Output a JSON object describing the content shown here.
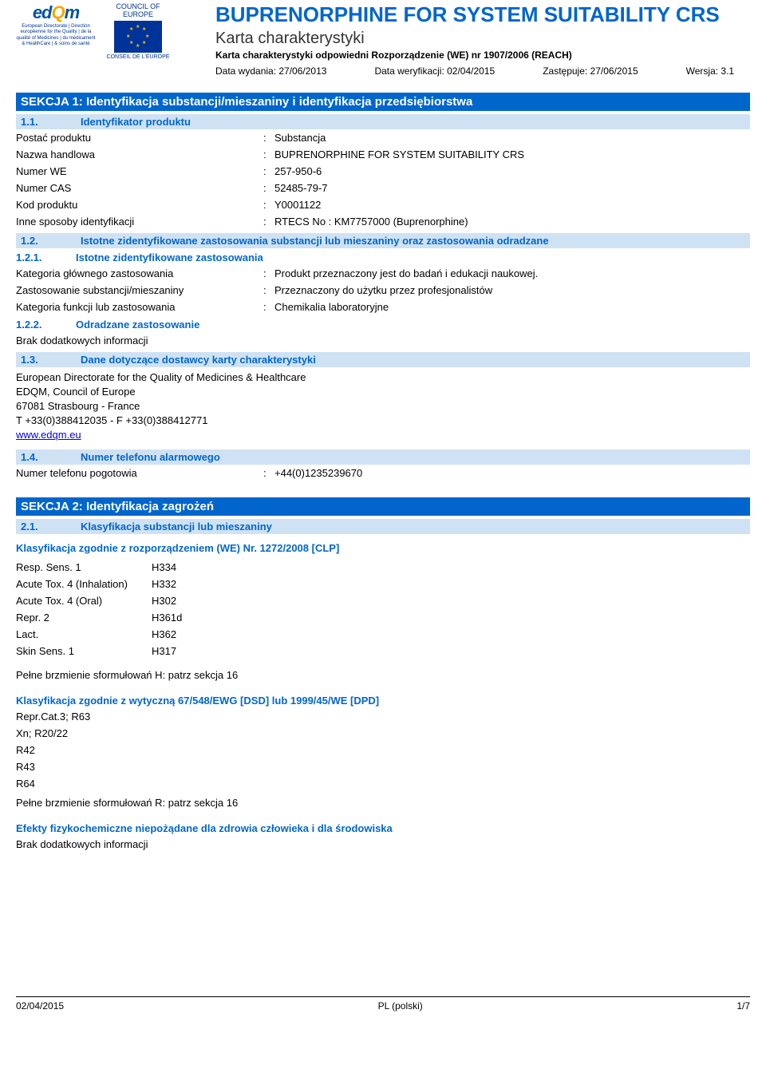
{
  "header": {
    "edqm_mark_e": "ed",
    "edqm_mark_q": "Q",
    "edqm_mark_m": "m",
    "edqm_sub": "European Directorate | Direction européenne\nfor the Quality | de la qualité\nof Medicines | du médicament\n& HealthCare | & soins de santé",
    "coe_top": "COUNCIL OF EUROPE",
    "coe_bottom": "CONSEIL DE L'EUROPE",
    "title": "BUPRENORPHINE FOR SYSTEM SUITABILITY CRS",
    "subtitle": "Karta charakterystyki",
    "regulation": "Karta charakterystyki odpowiedni Rozporządzenie (WE) nr 1907/2006 (REACH)",
    "issue_label": "Data wydania: 27/06/2013",
    "verify_label": "Data weryfikacji: 02/04/2015",
    "supersedes_label": "Zastępuje: 27/06/2015",
    "version_label": "Wersja: 3.1"
  },
  "s1": {
    "title": "SEKCJA 1: Identyfikacja substancji/mieszaniny i identyfikacja przedsiębiorstwa",
    "s11_num": "1.1.",
    "s11_title": "Identyfikator produktu",
    "form_k": "Postać produktu",
    "form_v": "Substancja",
    "trade_k": "Nazwa handlowa",
    "trade_v": "BUPRENORPHINE FOR SYSTEM SUITABILITY CRS",
    "ec_k": "Numer WE",
    "ec_v": "257-950-6",
    "cas_k": "Numer CAS",
    "cas_v": "52485-79-7",
    "code_k": "Kod produktu",
    "code_v": "Y0001122",
    "other_k": "Inne sposoby identyfikacji",
    "other_v": "RTECS No : KM7757000 (Buprenorphine)",
    "s12_num": "1.2.",
    "s12_title": "Istotne zidentyfikowane zastosowania substancji lub mieszaniny oraz zastosowania odradzane",
    "s121_num": "1.2.1.",
    "s121_title": "Istotne zidentyfikowane zastosowania",
    "maincat_k": "Kategoria głównego zastosowania",
    "maincat_v": "Produkt przeznaczony jest do badań i edukacji naukowej.",
    "use_k": "Zastosowanie substancji/mieszaniny",
    "use_v": "Przeznaczony do użytku przez profesjonalistów",
    "funccat_k": "Kategoria funkcji lub zastosowania",
    "funccat_v": "Chemikalia laboratoryjne",
    "s122_num": "1.2.2.",
    "s122_title": "Odradzane zastosowanie",
    "noinfo": "Brak dodatkowych informacji",
    "s13_num": "1.3.",
    "s13_title": "Dane dotyczące dostawcy karty charakterystyki",
    "supplier1": "European Directorate for the Quality of Medicines & Healthcare",
    "supplier2": "EDQM, Council of Europe",
    "supplier3": "67081 Strasbourg - France",
    "supplier4": "T +33(0)388412035 - F +33(0)388412771",
    "supplier_link": "www.edqm.eu",
    "s14_num": "1.4.",
    "s14_title": "Numer telefonu alarmowego",
    "emerg_k": "Numer telefonu pogotowia",
    "emerg_v": "+44(0)1235239670"
  },
  "s2": {
    "title": "SEKCJA 2: Identyfikacja zagrożeń",
    "s21_num": "2.1.",
    "s21_title": "Klasyfikacja substancji lub mieszaniny",
    "clp_heading": "Klasyfikacja zgodnie z rozporządzeniem (WE) Nr. 1272/2008 [CLP]",
    "clp": [
      {
        "c": "Resp. Sens. 1",
        "h": "H334"
      },
      {
        "c": "Acute Tox. 4 (Inhalation)",
        "h": "H332"
      },
      {
        "c": "Acute Tox. 4 (Oral)",
        "h": "H302"
      },
      {
        "c": "Repr. 2",
        "h": "H361d"
      },
      {
        "c": "Lact.",
        "h": "H362"
      },
      {
        "c": "Skin Sens. 1",
        "h": "H317"
      }
    ],
    "clp_note": "Pełne brzmienie sformułowań H: patrz sekcja 16",
    "dsd_heading": "Klasyfikacja zgodnie z wytyczną 67/548/EWG [DSD] lub 1999/45/WE [DPD]",
    "dsd": [
      "Repr.Cat.3; R63",
      "Xn; R20/22",
      "R42",
      "R43",
      "R64"
    ],
    "dsd_note": "Pełne brzmienie sformułowań R: patrz sekcja 16",
    "phys_heading": "Efekty fizykochemiczne niepożądane dla zdrowia człowieka i dla środowiska",
    "phys_text": "Brak dodatkowych informacji"
  },
  "footer": {
    "date": "02/04/2015",
    "lang": "PL (polski)",
    "page": "1/7"
  }
}
